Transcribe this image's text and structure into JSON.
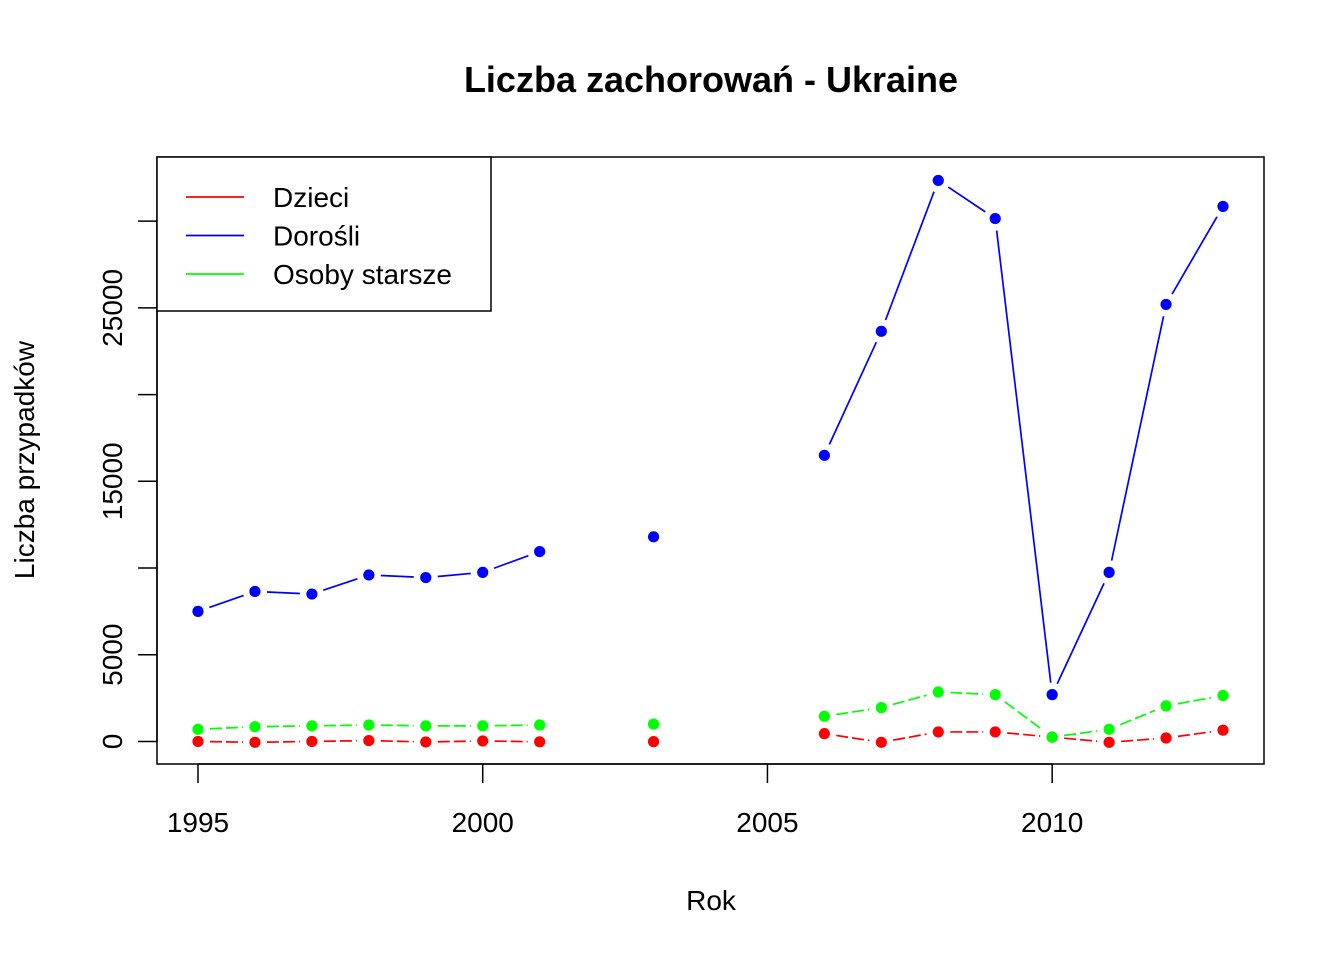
{
  "chart_data": {
    "type": "line",
    "title": "Liczba zachorowań -  Ukraine",
    "xlabel": "Rok",
    "ylabel": "Liczba przypadków",
    "xlim": [
      1994.28,
      2013.72
    ],
    "ylim": [
      -1300,
      33700
    ],
    "x_ticks": [
      1995,
      2000,
      2005,
      2010
    ],
    "y_ticks": [
      0,
      5000,
      15000,
      25000
    ],
    "y_minor_ticks": [
      10000,
      20000,
      30000
    ],
    "legend_position": "top-left",
    "x": [
      1995,
      1996,
      1997,
      1998,
      1999,
      2000,
      2001,
      2002,
      2003,
      2004,
      2005,
      2006,
      2007,
      2008,
      2009,
      2010,
      2011,
      2012,
      2013
    ],
    "series": [
      {
        "name": "Dzieci",
        "color": "#ff0000",
        "line_style": "dashed",
        "values": [
          0,
          -50,
          0,
          50,
          -30,
          30,
          -20,
          null,
          -10,
          null,
          null,
          450,
          -50,
          550,
          550,
          250,
          -50,
          200,
          650
        ]
      },
      {
        "name": "Dorośli",
        "color": "#0000ff",
        "line_style": "solid-dashed",
        "values": [
          7500,
          8650,
          8500,
          9600,
          9450,
          9750,
          10950,
          null,
          11800,
          null,
          null,
          16500,
          23650,
          32350,
          30150,
          2700,
          9750,
          25200,
          30850
        ]
      },
      {
        "name": "Osoby starsze",
        "color": "#00ff00",
        "line_style": "dashed",
        "values": [
          700,
          850,
          900,
          950,
          900,
          900,
          950,
          null,
          1000,
          null,
          null,
          1450,
          1950,
          2850,
          2700,
          250,
          700,
          2050,
          2650
        ]
      }
    ]
  }
}
